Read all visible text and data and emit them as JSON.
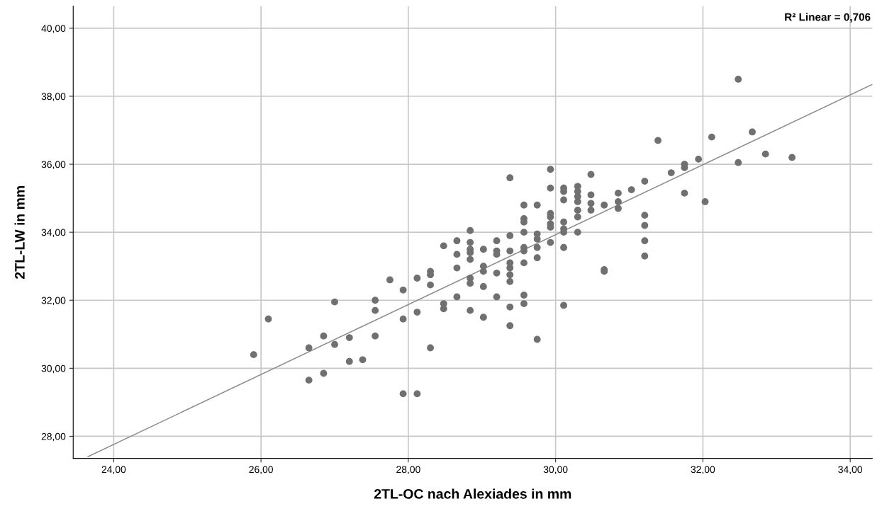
{
  "chart_data": {
    "type": "scatter",
    "xlabel": "2TL-OC nach Alexiades in mm",
    "ylabel": "2TL-LW in mm",
    "annotations": [
      "R² Linear = 0,706"
    ],
    "xlim": [
      23.45,
      34.3
    ],
    "ylim": [
      27.35,
      40.65
    ],
    "xticks": [
      {
        "value": 24,
        "label": "24,00"
      },
      {
        "value": 26,
        "label": "26,00"
      },
      {
        "value": 28,
        "label": "28,00"
      },
      {
        "value": 30,
        "label": "30,00"
      },
      {
        "value": 32,
        "label": "32,00"
      },
      {
        "value": 34,
        "label": "34,00"
      }
    ],
    "yticks": [
      {
        "value": 28,
        "label": "28,00"
      },
      {
        "value": 30,
        "label": "30,00"
      },
      {
        "value": 32,
        "label": "32,00"
      },
      {
        "value": 34,
        "label": "34,00"
      },
      {
        "value": 36,
        "label": "36,00"
      },
      {
        "value": 38,
        "label": "38,00"
      },
      {
        "value": 40,
        "label": "40,00"
      }
    ],
    "grid": true,
    "marker": "circle",
    "series": [
      {
        "color": "#707070",
        "x": [
          25.9,
          26.1,
          26.65,
          26.65,
          26.85,
          26.85,
          27.0,
          27.0,
          27.2,
          27.2,
          27.38,
          27.55,
          27.55,
          27.55,
          27.75,
          27.93,
          27.93,
          27.93,
          28.12,
          28.12,
          28.12,
          28.3,
          28.3,
          28.3,
          28.3,
          28.48,
          28.48,
          28.48,
          28.66,
          28.66,
          28.66,
          28.66,
          28.84,
          28.84,
          28.84,
          28.84,
          28.84,
          28.84,
          28.84,
          28.84,
          29.02,
          29.02,
          29.02,
          29.02,
          29.02,
          29.2,
          29.2,
          29.2,
          29.2,
          29.2,
          29.38,
          29.38,
          29.38,
          29.38,
          29.38,
          29.38,
          29.38,
          29.38,
          29.38,
          29.57,
          29.57,
          29.57,
          29.57,
          29.57,
          29.57,
          29.57,
          29.57,
          29.57,
          29.75,
          29.75,
          29.75,
          29.75,
          29.75,
          29.75,
          29.93,
          29.93,
          29.93,
          29.93,
          29.93,
          29.93,
          29.93,
          30.11,
          30.11,
          30.11,
          30.11,
          30.11,
          30.11,
          30.11,
          30.11,
          30.3,
          30.3,
          30.3,
          30.3,
          30.3,
          30.3,
          30.3,
          30.48,
          30.48,
          30.48,
          30.48,
          30.66,
          30.66,
          30.66,
          30.85,
          30.85,
          30.85,
          31.03,
          31.21,
          31.21,
          31.21,
          31.21,
          31.21,
          31.39,
          31.57,
          31.75,
          31.75,
          31.75,
          31.94,
          32.03,
          32.12,
          32.48,
          32.48,
          32.67,
          32.85,
          33.21
        ],
        "values": [
          30.4,
          31.45,
          30.6,
          29.65,
          30.95,
          29.85,
          31.95,
          30.7,
          30.9,
          30.2,
          30.25,
          32.0,
          31.7,
          30.95,
          32.6,
          32.3,
          31.45,
          29.25,
          32.65,
          31.65,
          29.25,
          32.85,
          32.75,
          32.45,
          30.6,
          33.6,
          31.9,
          31.75,
          33.75,
          33.35,
          32.95,
          32.1,
          34.05,
          33.7,
          33.5,
          33.4,
          33.2,
          32.65,
          32.5,
          31.7,
          33.5,
          33.0,
          32.85,
          32.4,
          31.5,
          33.75,
          33.45,
          33.35,
          32.8,
          32.1,
          35.6,
          33.9,
          33.45,
          33.1,
          32.95,
          32.75,
          32.55,
          31.8,
          31.25,
          34.8,
          34.4,
          34.3,
          34.0,
          33.55,
          33.45,
          33.1,
          32.15,
          31.9,
          34.8,
          33.95,
          33.8,
          33.55,
          33.25,
          30.85,
          35.85,
          35.3,
          34.55,
          34.45,
          34.25,
          34.15,
          33.7,
          35.3,
          35.2,
          34.95,
          34.3,
          34.1,
          34.0,
          33.55,
          31.85,
          35.35,
          35.2,
          35.05,
          34.9,
          34.65,
          34.45,
          34.0,
          35.7,
          35.1,
          34.85,
          34.65,
          34.8,
          32.9,
          32.85,
          35.15,
          34.9,
          34.7,
          35.25,
          35.5,
          34.5,
          34.2,
          33.75,
          33.3,
          36.7,
          35.75,
          36.0,
          35.9,
          35.15,
          36.15,
          34.9,
          36.8,
          38.5,
          36.05,
          36.95,
          36.3,
          36.2
        ]
      },
      {
        "type": "line",
        "color": "#8c8c8c",
        "marker": "none",
        "x": [
          23.65,
          34.3
        ],
        "values": [
          27.4,
          38.35
        ]
      }
    ]
  }
}
